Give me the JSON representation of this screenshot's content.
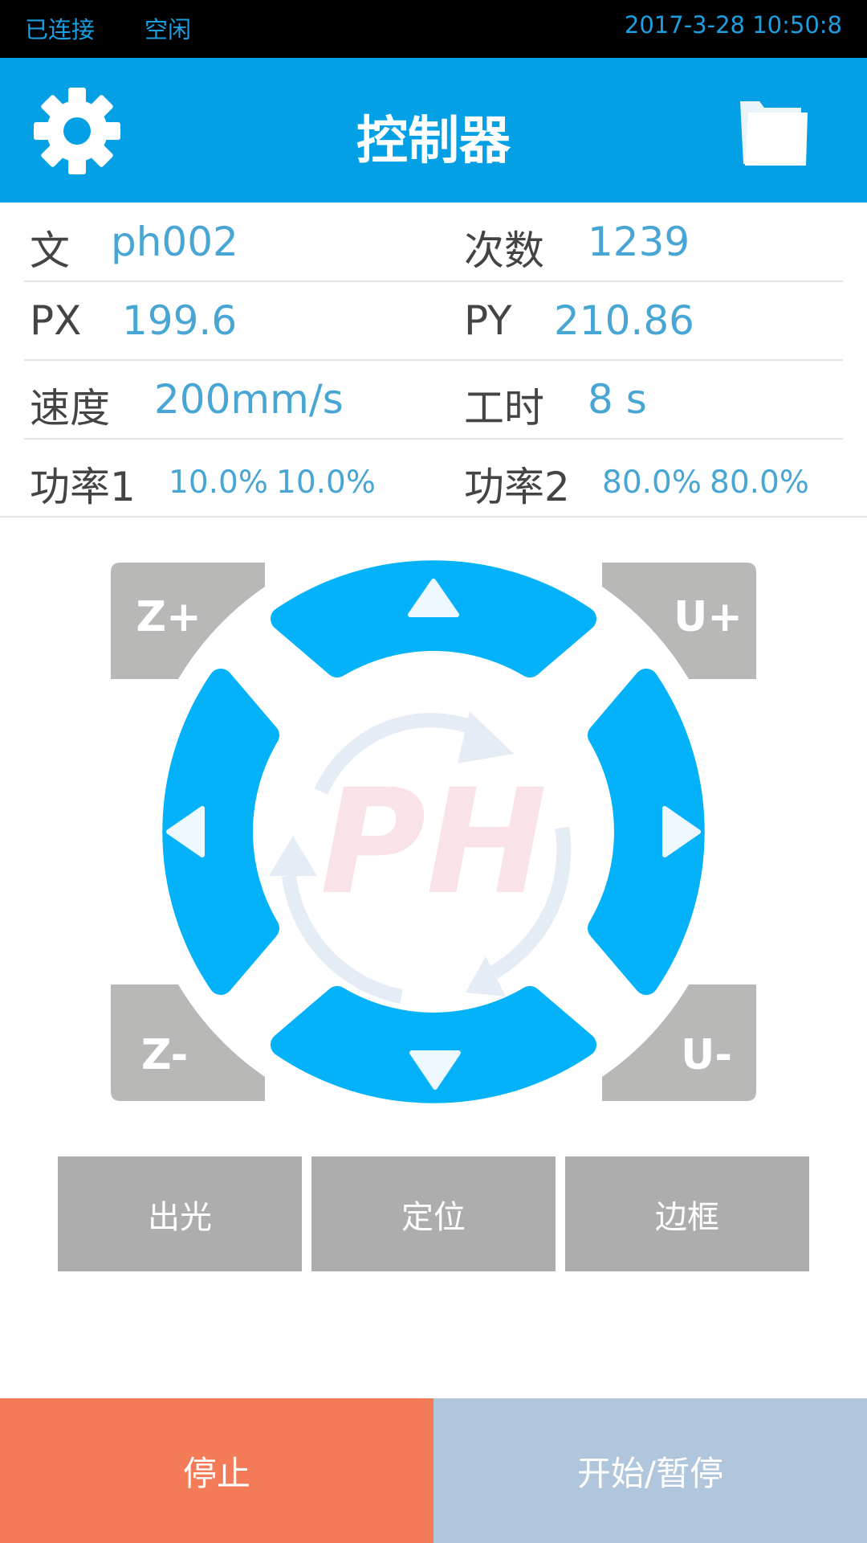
{
  "status_bar": {
    "connection": "已连接",
    "state": "空闲",
    "datetime": "2017-3-28 10:50:8"
  },
  "header": {
    "title": "控制器",
    "left_icon": "gear-icon",
    "right_icon": "folder-icon"
  },
  "info": {
    "file_label": "文",
    "file_value": "ph002",
    "count_label": "次数",
    "count_value": "1239",
    "px_label": "PX",
    "px_value": "199.6",
    "py_label": "PY",
    "py_value": "210.86",
    "speed_label": "速度",
    "speed_value": "200mm/s",
    "worktime_label": "工时",
    "worktime_value": "8 s",
    "power1_label": "功率1",
    "power1_min": "10.0%",
    "power1_max": "10.0%",
    "power2_label": "功率2",
    "power2_min": "80.0%",
    "power2_max": "80.0%"
  },
  "pad": {
    "z_plus": "Z+",
    "z_minus": "Z-",
    "u_plus": "U+",
    "u_minus": "U-",
    "logo": "PH",
    "accent": "#03b2f9",
    "corner_color": "#b8b8b7"
  },
  "actions": {
    "fire": "出光",
    "locate": "定位",
    "frame": "边框"
  },
  "bottom": {
    "stop": "停止",
    "start_pause": "开始/暂停",
    "stop_color": "#f47b57",
    "start_color": "#b0c6dc"
  }
}
